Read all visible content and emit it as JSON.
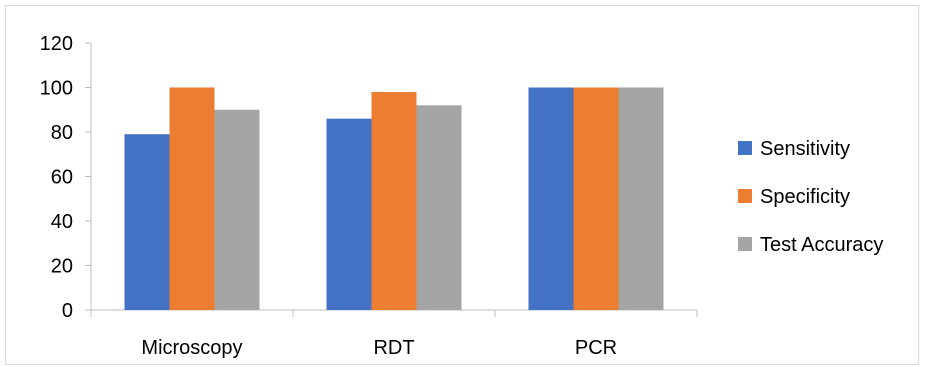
{
  "chart_data": {
    "type": "bar",
    "title": "",
    "xlabel": "",
    "ylabel": "",
    "categories": [
      "Microscopy",
      "RDT",
      "PCR"
    ],
    "series": [
      {
        "name": "Sensitivity",
        "color": "#4472c4",
        "values": [
          79,
          86,
          100
        ]
      },
      {
        "name": "Specificity",
        "color": "#ed7d31",
        "values": [
          100,
          98,
          100
        ]
      },
      {
        "name": "Test Accuracy",
        "color": "#a5a5a5",
        "values": [
          90,
          92,
          100
        ]
      }
    ],
    "ylim": [
      0,
      120
    ],
    "yticks": [
      0,
      20,
      40,
      60,
      80,
      100,
      120
    ],
    "grid": false,
    "legend_position": "right"
  }
}
